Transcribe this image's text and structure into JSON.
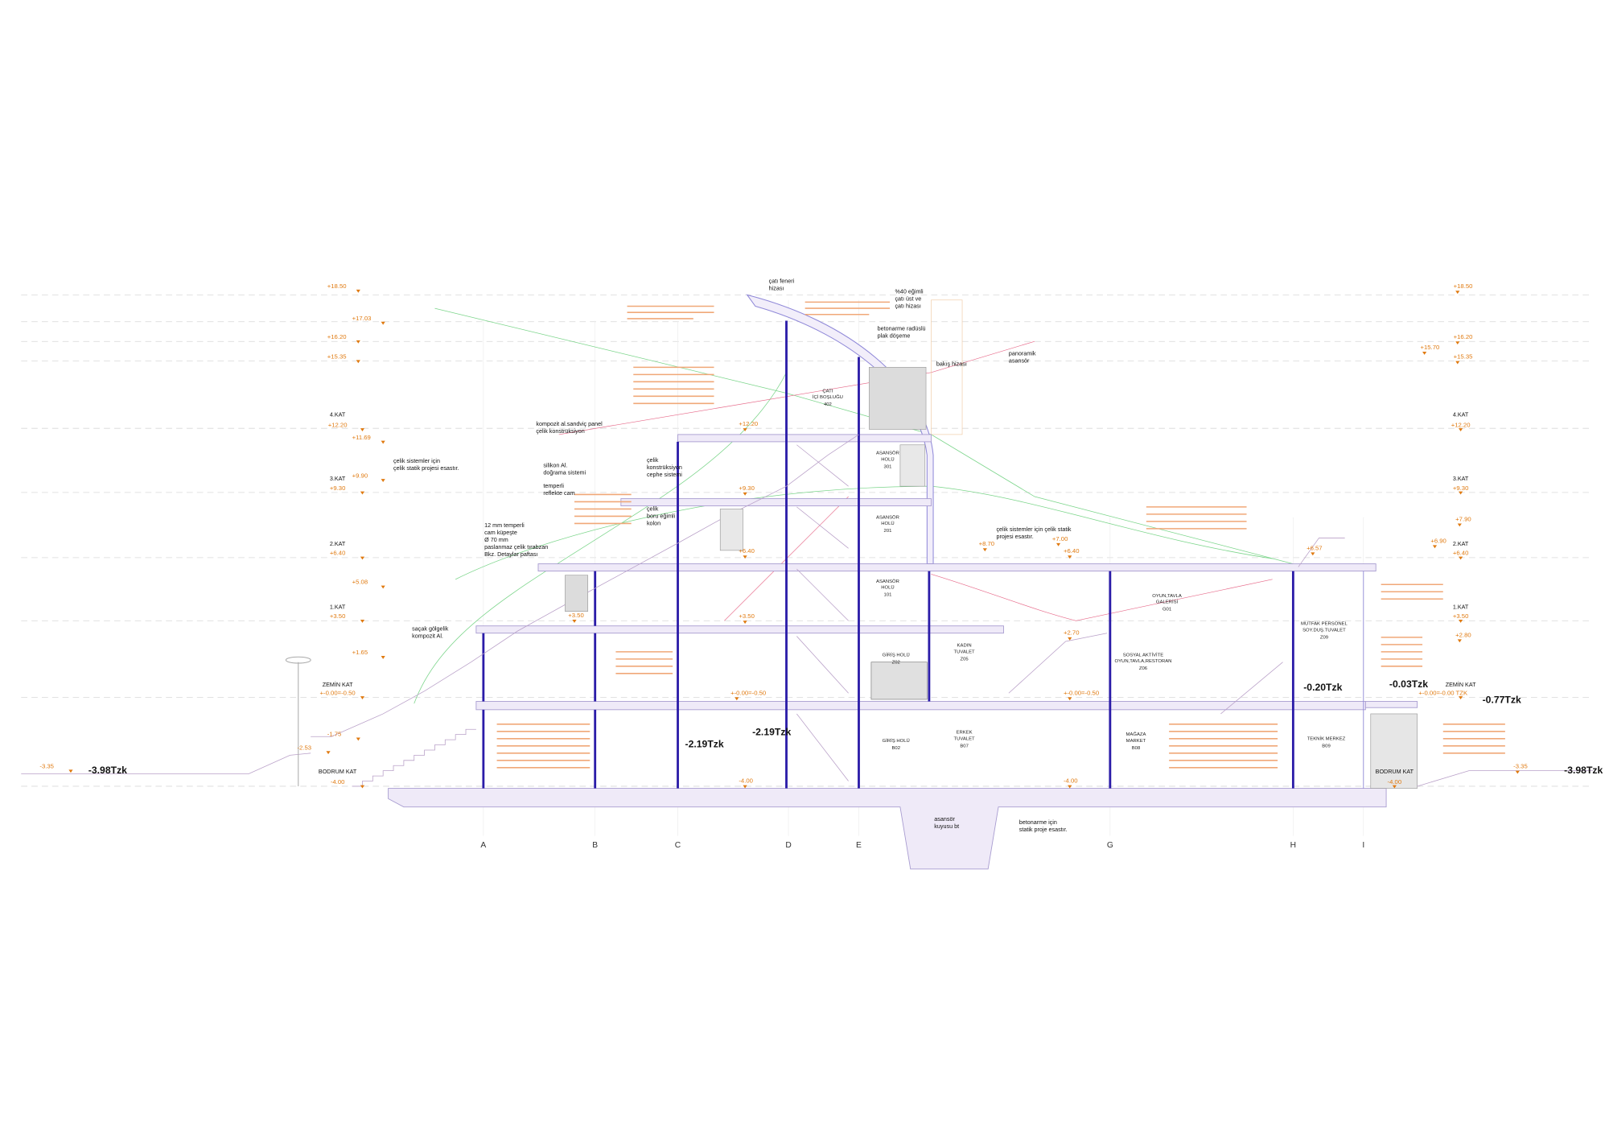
{
  "left_levels": [
    {
      "name": "4.KAT",
      "elevation": "+12.20"
    },
    {
      "name": "3.KAT",
      "elevation": "+9.30"
    },
    {
      "name": "2.KAT",
      "elevation": "+6.40"
    },
    {
      "name": "1.KAT",
      "elevation": "+3.50"
    },
    {
      "name": "ZEMİN KAT",
      "elevation": "+-0.00=-0.50"
    },
    {
      "name": "BODRUM KAT",
      "elevation": "-4.00"
    }
  ],
  "left_marks": [
    "+18.50",
    "+17.03",
    "+16.20",
    "+15.35",
    "+11.69",
    "+9.90",
    "+5.08",
    "+1.65",
    "-1.75",
    "-2.53",
    "-3.35"
  ],
  "right_levels": [
    {
      "name": "4.KAT",
      "elevation": "+12.20"
    },
    {
      "name": "3.KAT",
      "elevation": "+9.30"
    },
    {
      "name": "2.KAT",
      "elevation": "+6.40"
    },
    {
      "name": "1.KAT",
      "elevation": "+3.50"
    },
    {
      "name": "ZEMİN KAT",
      "elevation": "+-0.00=-0.00 TZK"
    },
    {
      "name": "BODRUM KAT",
      "elevation": "-4.00"
    }
  ],
  "right_marks": [
    "+18.50",
    "+16.20",
    "+15.70",
    "+15.35",
    "+7.90",
    "+6.90",
    "+2.80",
    "-3.35"
  ],
  "inner_marks": [
    "+12.20",
    "+9.30",
    "+8.70",
    "+7.00",
    "+6.40",
    "+6.40",
    "+6.57",
    "+3.50",
    "+3.50",
    "+2.70",
    "+-0.00=-0.50",
    "+-0.00=-0.50",
    "-4.00",
    "-4.00"
  ],
  "spot_levels": [
    "-3.98Tzk",
    "-2.19Tzk",
    "-2.19Tzk",
    "-0.20Tzk",
    "-0.03Tzk",
    "-0.77Tzk",
    "-3.98Tzk"
  ],
  "axes": [
    "A",
    "B",
    "C",
    "D",
    "E",
    "G",
    "H",
    "I"
  ],
  "rooms": [
    {
      "name": [
        "ÇATI",
        "İÇİ BOŞLUĞU"
      ],
      "code": "402"
    },
    {
      "name": [
        "ASANSÖR",
        "HOLÜ"
      ],
      "code": "301"
    },
    {
      "name": [
        "ASANSÖR",
        "HOLÜ"
      ],
      "code": "201"
    },
    {
      "name": [
        "ASANSÖR",
        "HOLÜ"
      ],
      "code": "101"
    },
    {
      "name": [
        "OYUN,TAVLA",
        "GALERİSİ"
      ],
      "code": "G01"
    },
    {
      "name": [
        "GİRİŞ HOLÜ"
      ],
      "code": "Z02"
    },
    {
      "name": [
        "KADIN",
        "TUVALET"
      ],
      "code": "Z05"
    },
    {
      "name": [
        "SOSYAL AKTİVİTE",
        "OYUN,TAVLA,RESTORAN"
      ],
      "code": "Z06"
    },
    {
      "name": [
        "MUTFAK PERSONEL",
        "SOY.DUŞ.TUVALET"
      ],
      "code": "Z09"
    },
    {
      "name": [
        "GİRİŞ HOLÜ"
      ],
      "code": "B02"
    },
    {
      "name": [
        "ERKEK",
        "TUVALET"
      ],
      "code": "B07"
    },
    {
      "name": [
        "MAĞAZA",
        "MARKET"
      ],
      "code": "B08"
    },
    {
      "name": [
        "TEKNİK MERKEZ"
      ],
      "code": "B09"
    }
  ],
  "annotations": [
    [
      "çatı feneri",
      "hizası"
    ],
    [
      "%40 eğimli",
      "çatı üst ve",
      "çatı hizası"
    ],
    [
      "betonarme radüslü",
      "plak döşeme"
    ],
    [
      "bakış hizası"
    ],
    [
      "panoramik",
      "asansör"
    ],
    [
      "kompozit al.sandviç panel",
      "çelik konstrüksiyon"
    ],
    [
      "çelik sistemler için",
      "çelik statik projesi esastır."
    ],
    [
      "silikon Al.",
      "doğrama sistemi"
    ],
    [
      "çelik",
      "konstrüksiyon",
      "cephe sistemi"
    ],
    [
      "temperli",
      "reflekte cam"
    ],
    [
      "çelik",
      "boru eğimli",
      "kolon"
    ],
    [
      "12 mm temperli",
      "cam küpeşte",
      "Ø 70 mm",
      "paslanmaz çelik tırabzan",
      "Bkz. Detaylar paftası"
    ],
    [
      "çelik sistemler için çelik statik",
      "projesi esastır."
    ],
    [
      "saçak gölgelik",
      "kompozit Al."
    ],
    [
      "asansör",
      "kuyusu bt"
    ],
    [
      "betonarme için",
      "statik proje esastır."
    ]
  ]
}
